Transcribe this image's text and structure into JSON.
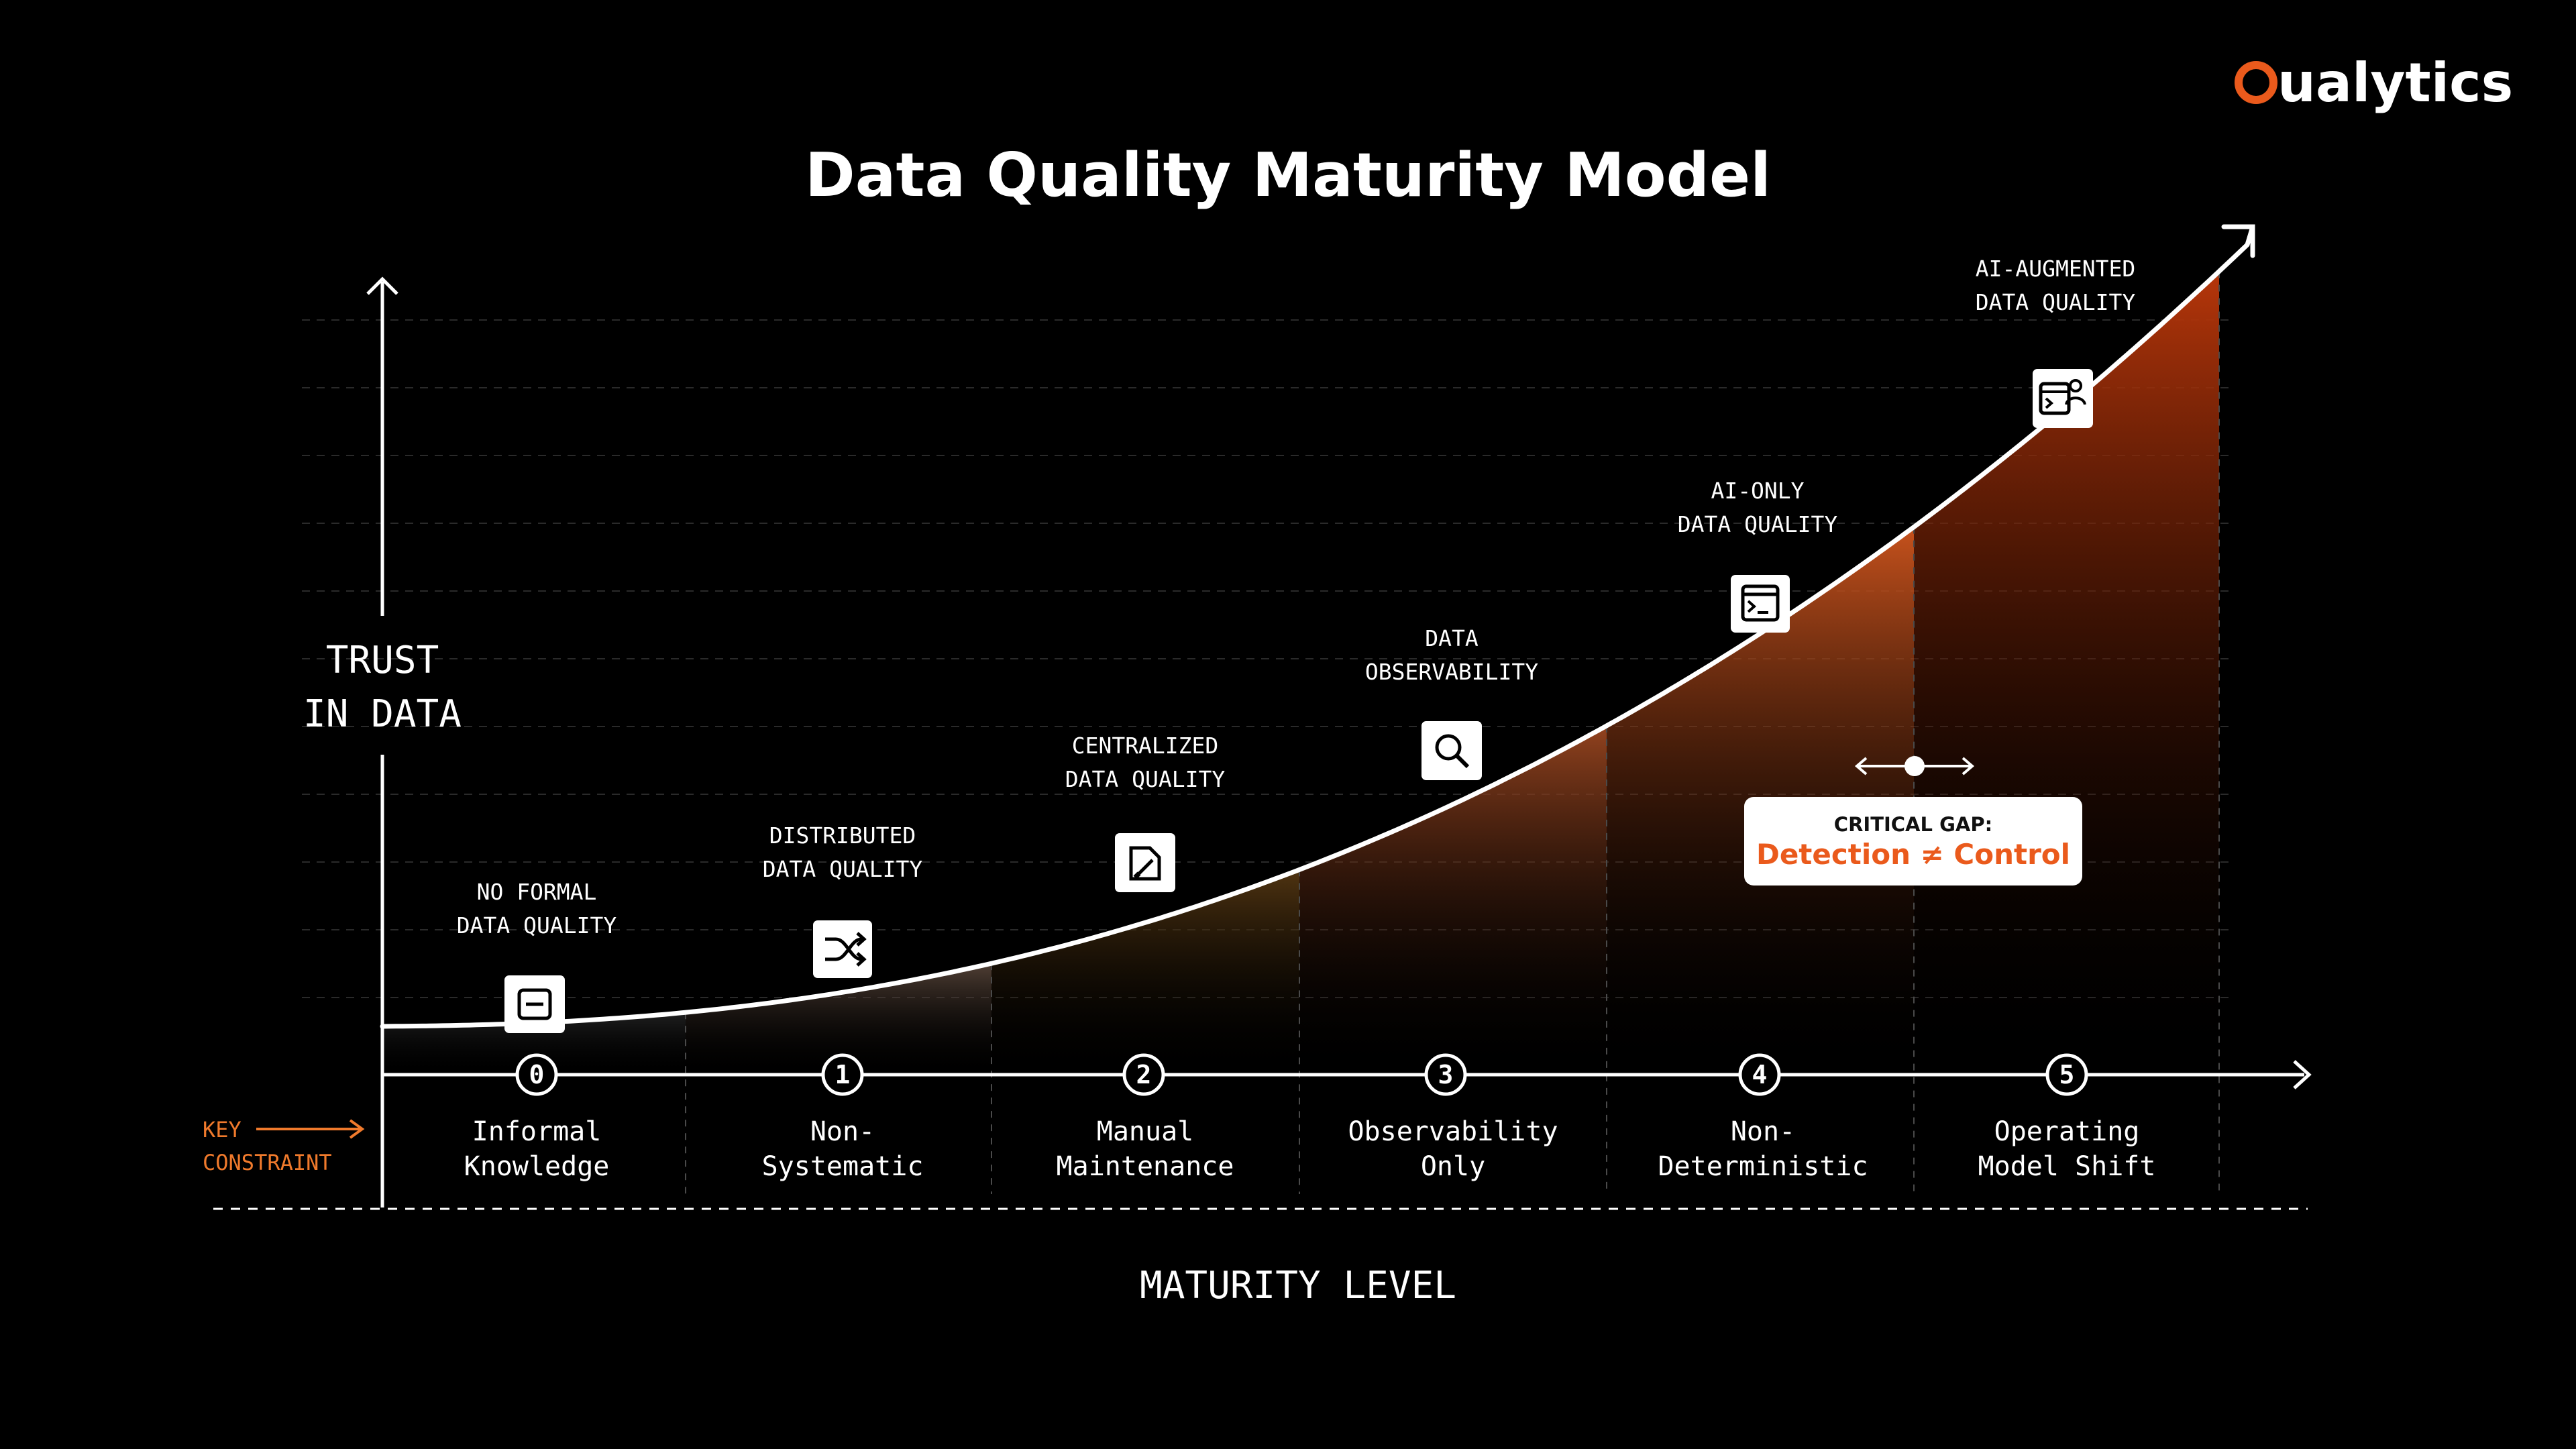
{
  "brand": {
    "logo_text": "Qualytics",
    "accent_color": "#ea5a1c"
  },
  "title": "Data Quality Maturity Model",
  "y_axis_label": [
    "TRUST",
    "IN DATA"
  ],
  "x_axis_label": "MATURITY LEVEL",
  "key_constraint_label": [
    "KEY",
    "CONSTRAINT"
  ],
  "stages": [
    {
      "level": "0",
      "name": [
        "NO FORMAL",
        "DATA QUALITY"
      ],
      "constraint": [
        "Informal",
        "Knowledge"
      ],
      "icon": "minus-square-icon"
    },
    {
      "level": "1",
      "name": [
        "DISTRIBUTED",
        "DATA QUALITY"
      ],
      "constraint": [
        "Non-",
        "Systematic"
      ],
      "icon": "shuffle-icon"
    },
    {
      "level": "2",
      "name": [
        "CENTRALIZED",
        "DATA QUALITY"
      ],
      "constraint": [
        "Manual",
        "Maintenance"
      ],
      "icon": "document-edit-icon"
    },
    {
      "level": "3",
      "name": [
        "DATA",
        "OBSERVABILITY"
      ],
      "constraint": [
        "Observability",
        "Only"
      ],
      "icon": "search-icon"
    },
    {
      "level": "4",
      "name": [
        "AI-ONLY",
        "DATA QUALITY"
      ],
      "constraint": [
        "Non-",
        "Deterministic"
      ],
      "icon": "terminal-window-icon"
    },
    {
      "level": "5",
      "name": [
        "AI-AUGMENTED",
        "DATA QUALITY"
      ],
      "constraint": [
        "Operating",
        "Model Shift"
      ],
      "icon": "ai-agent-icon"
    }
  ],
  "critical_gap": {
    "title": "CRITICAL GAP:",
    "text": "Detection ≠ Control"
  }
}
